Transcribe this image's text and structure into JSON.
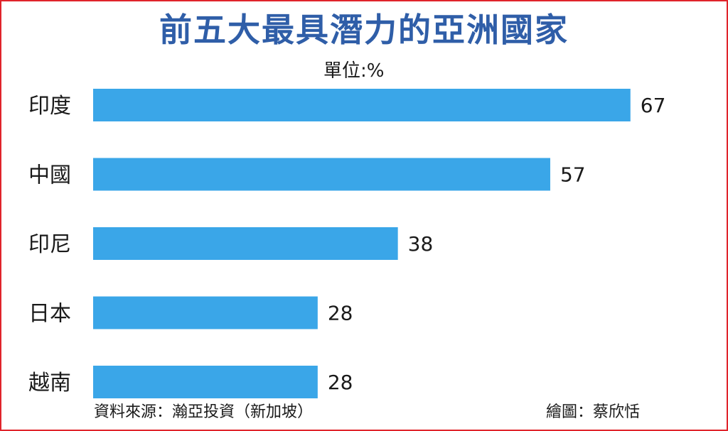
{
  "chart_data": {
    "type": "bar",
    "orientation": "horizontal",
    "title": "前五大最具潛力的亞洲國家",
    "unit_label": "單位:%",
    "categories": [
      "印度",
      "中國",
      "印尼",
      "日本",
      "越南"
    ],
    "values": [
      67,
      57,
      38,
      28,
      28
    ],
    "bar_color": "#3aa6e8",
    "grid": false,
    "legend": false
  },
  "footer": {
    "source": "資料來源：瀚亞投資（新加坡）",
    "credit": "繪圖：蔡欣恬"
  },
  "colors": {
    "title": "#2f5ea8",
    "border": "#e0242b"
  }
}
